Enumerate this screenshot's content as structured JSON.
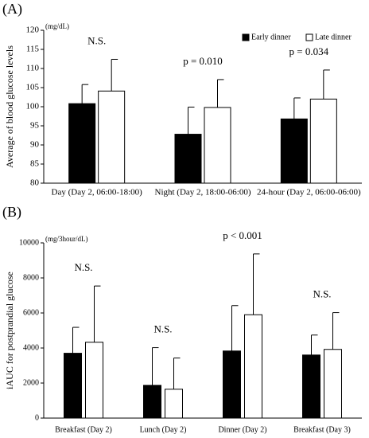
{
  "chart_data": [
    {
      "type": "bar",
      "panel": "(A)",
      "y_label": "Average of blood glucose levels",
      "unit": "(mg/dL)",
      "categories": [
        "Day (Day 2, 06:00-18:00)",
        "Night (Day 2, 18:00-06:00)",
        "24-hour (Day 2, 06:00-06:00)"
      ],
      "series": [
        {
          "name": "Early dinner",
          "color": "#000000",
          "values": [
            100.8,
            92.8,
            96.8
          ],
          "errors": [
            5.0,
            7.1,
            5.5
          ]
        },
        {
          "name": "Late dinner",
          "color": "#ffffff",
          "values": [
            104.1,
            99.8,
            102.0
          ],
          "errors": [
            8.3,
            7.3,
            7.6
          ]
        }
      ],
      "annotations": [
        "N.S.",
        "p = 0.010",
        "p = 0.034"
      ],
      "ylim": [
        80,
        120
      ],
      "yticks": [
        80,
        85,
        90,
        95,
        100,
        105,
        110,
        115,
        120
      ],
      "legend": "top-right"
    },
    {
      "type": "bar",
      "panel": "(B)",
      "y_label": "iAUC for postprandial glucose",
      "unit": "(mg/3hour/dL)",
      "categories": [
        "Breakfast (Day 2)",
        "Lunch (Day 2)",
        "Dinner (Day 2)",
        "Breakfast (Day 3)"
      ],
      "series": [
        {
          "name": "Early dinner",
          "color": "#000000",
          "values": [
            3700,
            1870,
            3830,
            3600
          ],
          "errors": [
            1480,
            2150,
            2590,
            1140
          ]
        },
        {
          "name": "Late dinner",
          "color": "#ffffff",
          "values": [
            4330,
            1650,
            5900,
            3920
          ],
          "errors": [
            3210,
            1780,
            3470,
            2100
          ]
        }
      ],
      "annotations": [
        "N.S.",
        "N.S.",
        "p < 0.001",
        "N.S."
      ],
      "ylim": [
        0,
        10000
      ],
      "yticks": [
        0,
        2000,
        4000,
        6000,
        8000,
        10000
      ],
      "legend": "none"
    }
  ]
}
